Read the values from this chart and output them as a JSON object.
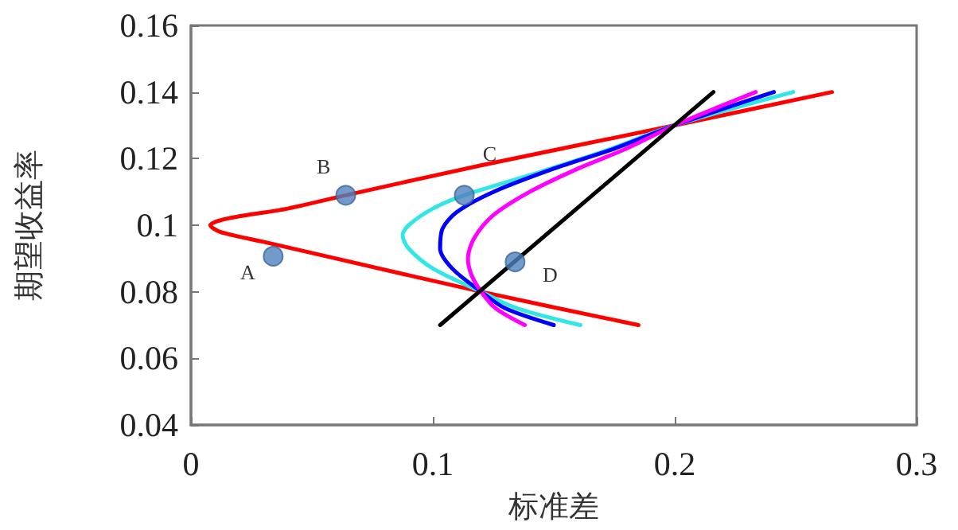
{
  "chart_data": {
    "type": "line",
    "xlabel": "标准差",
    "ylabel": "期望收益率",
    "xlim": [
      0,
      0.3
    ],
    "xticks": [
      0,
      0.1,
      0.2,
      0.3
    ],
    "ylim": [
      0.04,
      0.16
    ],
    "yticks": [
      0.04,
      0.06,
      0.08,
      0.1,
      0.12,
      0.14,
      0.16
    ],
    "grid": false,
    "marker": "none",
    "line_style": "solid",
    "series": [
      {
        "color": "#ff0000",
        "x": [
          0.185,
          0.12,
          0.06,
          0.03,
          0.012,
          0.008,
          0.015,
          0.04,
          0.064,
          0.12,
          0.2,
          0.265
        ],
        "values": [
          0.07,
          0.08,
          0.09,
          0.095,
          0.098,
          0.1,
          0.102,
          0.105,
          0.109,
          0.118,
          0.13,
          0.14
        ]
      },
      {
        "color": "#33e6e6",
        "x": [
          0.161,
          0.135,
          0.12,
          0.1,
          0.09,
          0.0875,
          0.09,
          0.1,
          0.113,
          0.14,
          0.17,
          0.2,
          0.249
        ],
        "values": [
          0.07,
          0.075,
          0.08,
          0.087,
          0.093,
          0.097,
          0.1,
          0.105,
          0.109,
          0.115,
          0.122,
          0.13,
          0.14
        ]
      },
      {
        "color": "#0000ff",
        "x": [
          0.15,
          0.13,
          0.12,
          0.108,
          0.103,
          0.104,
          0.11,
          0.125,
          0.15,
          0.175,
          0.2,
          0.241
        ],
        "values": [
          0.07,
          0.075,
          0.08,
          0.087,
          0.093,
          0.099,
          0.104,
          0.11,
          0.117,
          0.123,
          0.13,
          0.14
        ]
      },
      {
        "color": "#ff00ff",
        "x": [
          0.138,
          0.126,
          0.12,
          0.116,
          0.1145,
          0.117,
          0.125,
          0.14,
          0.16,
          0.18,
          0.2,
          0.2335
        ],
        "values": [
          0.07,
          0.075,
          0.08,
          0.085,
          0.09,
          0.096,
          0.103,
          0.11,
          0.117,
          0.123,
          0.13,
          0.14
        ]
      },
      {
        "color": "#000000",
        "x": [
          0.103,
          0.216
        ],
        "values": [
          0.07,
          0.14
        ]
      },
      {
        "type": "scatter",
        "color": "#4f81bd",
        "marker": "circle",
        "x": [
          0.034,
          0.064,
          0.113,
          0.134
        ],
        "values": [
          0.0907,
          0.109,
          0.109,
          0.089
        ]
      }
    ],
    "annotations": [
      {
        "text": "A",
        "x": 0.034,
        "y": 0.0907
      },
      {
        "text": "B",
        "x": 0.064,
        "y": 0.109
      },
      {
        "text": "C",
        "x": 0.113,
        "y": 0.109
      },
      {
        "text": "D",
        "x": 0.134,
        "y": 0.089
      }
    ]
  }
}
